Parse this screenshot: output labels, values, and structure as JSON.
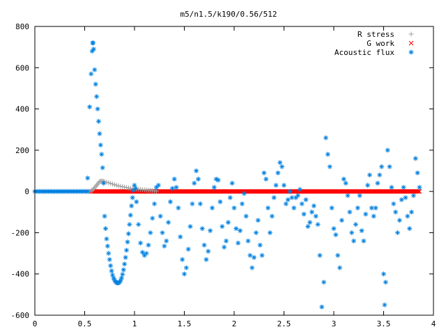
{
  "chart_data": {
    "type": "scatter",
    "title": "m5/n1.5/k190/0.56/512",
    "xlabel": "",
    "ylabel": "",
    "xlim": [
      0,
      4
    ],
    "ylim": [
      -600,
      800
    ],
    "x_ticks": [
      "0",
      "0.5",
      "1",
      "1.5",
      "2",
      "2.5",
      "3",
      "3.5",
      "4"
    ],
    "y_ticks": [
      "800",
      "600",
      "400",
      "200",
      "0",
      "-200",
      "-400",
      "-600"
    ],
    "legend_position": "top-right",
    "grid": false,
    "series": [
      {
        "name": "R stress",
        "marker": "plus",
        "color": "#a0a0a0",
        "points": [
          [
            0.57,
            5
          ],
          [
            0.58,
            8
          ],
          [
            0.59,
            12
          ],
          [
            0.6,
            18
          ],
          [
            0.61,
            24
          ],
          [
            0.62,
            30
          ],
          [
            0.63,
            36
          ],
          [
            0.64,
            42
          ],
          [
            0.65,
            48
          ],
          [
            0.66,
            50
          ],
          [
            0.67,
            50
          ],
          [
            0.68,
            49
          ],
          [
            0.69,
            48
          ],
          [
            0.7,
            47
          ],
          [
            0.72,
            45
          ],
          [
            0.74,
            42
          ],
          [
            0.76,
            39
          ],
          [
            0.78,
            36
          ],
          [
            0.8,
            33
          ],
          [
            0.82,
            30
          ],
          [
            0.84,
            27
          ],
          [
            0.86,
            25
          ],
          [
            0.88,
            23
          ],
          [
            0.9,
            21
          ],
          [
            0.92,
            19
          ],
          [
            0.94,
            17
          ],
          [
            0.96,
            15
          ],
          [
            0.98,
            14
          ],
          [
            1.0,
            13
          ],
          [
            1.02,
            12
          ],
          [
            1.04,
            11
          ],
          [
            1.06,
            10
          ],
          [
            1.08,
            9
          ],
          [
            1.1,
            8
          ],
          [
            1.12,
            7
          ],
          [
            1.14,
            6
          ],
          [
            1.16,
            5
          ],
          [
            1.18,
            4
          ],
          [
            1.2,
            3
          ],
          [
            1.22,
            2
          ]
        ]
      },
      {
        "name": "G work",
        "marker": "cross",
        "color": "#ff0000",
        "x_range": [
          0.57,
          3.86
        ],
        "constant_value": 0
      },
      {
        "name": "Acoustic flux",
        "marker": "star",
        "color": "#0080e0",
        "baseline_segment": {
          "x_range": [
            0.0,
            0.55
          ],
          "value": 0
        },
        "points": [
          [
            0.53,
            65
          ],
          [
            0.55,
            410
          ],
          [
            0.565,
            570
          ],
          [
            0.575,
            680
          ],
          [
            0.58,
            720
          ],
          [
            0.585,
            720
          ],
          [
            0.59,
            690
          ],
          [
            0.6,
            590
          ],
          [
            0.61,
            520
          ],
          [
            0.62,
            460
          ],
          [
            0.63,
            400
          ],
          [
            0.64,
            340
          ],
          [
            0.65,
            280
          ],
          [
            0.66,
            225
          ],
          [
            0.67,
            180
          ],
          [
            0.68,
            115
          ],
          [
            0.69,
            40
          ],
          [
            0.7,
            -120
          ],
          [
            0.71,
            -180
          ],
          [
            0.72,
            -230
          ],
          [
            0.73,
            -265
          ],
          [
            0.74,
            -300
          ],
          [
            0.75,
            -330
          ],
          [
            0.76,
            -360
          ],
          [
            0.77,
            -385
          ],
          [
            0.78,
            -405
          ],
          [
            0.79,
            -420
          ],
          [
            0.8,
            -430
          ],
          [
            0.81,
            -438
          ],
          [
            0.82,
            -442
          ],
          [
            0.83,
            -444
          ],
          [
            0.84,
            -443
          ],
          [
            0.85,
            -440
          ],
          [
            0.86,
            -432
          ],
          [
            0.87,
            -420
          ],
          [
            0.88,
            -402
          ],
          [
            0.89,
            -380
          ],
          [
            0.9,
            -352
          ],
          [
            0.91,
            -320
          ],
          [
            0.92,
            -285
          ],
          [
            0.93,
            -245
          ],
          [
            0.94,
            -205
          ],
          [
            0.95,
            -160
          ],
          [
            0.96,
            -115
          ],
          [
            0.97,
            -70
          ],
          [
            0.98,
            -30
          ],
          [
            0.99,
            5
          ],
          [
            1.0,
            30
          ],
          [
            1.01,
            15
          ],
          [
            1.02,
            -50
          ],
          [
            1.04,
            -160
          ],
          [
            1.06,
            -250
          ],
          [
            1.08,
            -295
          ],
          [
            1.1,
            -310
          ],
          [
            1.12,
            -300
          ],
          [
            1.14,
            -260
          ],
          [
            1.16,
            -200
          ],
          [
            1.18,
            -130
          ],
          [
            1.2,
            -60
          ],
          [
            1.22,
            20
          ],
          [
            1.24,
            30
          ],
          [
            1.26,
            -120
          ],
          [
            1.28,
            -200
          ],
          [
            1.3,
            -265
          ],
          [
            1.32,
            -240
          ],
          [
            1.34,
            -150
          ],
          [
            1.36,
            -50
          ],
          [
            1.38,
            15
          ],
          [
            1.4,
            60
          ],
          [
            1.42,
            20
          ],
          [
            1.44,
            -80
          ],
          [
            1.46,
            -220
          ],
          [
            1.48,
            -330
          ],
          [
            1.5,
            -400
          ],
          [
            1.52,
            -370
          ],
          [
            1.54,
            -280
          ],
          [
            1.56,
            -170
          ],
          [
            1.58,
            -60
          ],
          [
            1.6,
            40
          ],
          [
            1.62,
            100
          ],
          [
            1.64,
            60
          ],
          [
            1.66,
            -60
          ],
          [
            1.68,
            -180
          ],
          [
            1.7,
            -260
          ],
          [
            1.72,
            -330
          ],
          [
            1.74,
            -290
          ],
          [
            1.76,
            -190
          ],
          [
            1.78,
            -80
          ],
          [
            1.8,
            20
          ],
          [
            1.82,
            60
          ],
          [
            1.84,
            55
          ],
          [
            1.86,
            -50
          ],
          [
            1.88,
            -170
          ],
          [
            1.9,
            -270
          ],
          [
            1.92,
            -240
          ],
          [
            1.94,
            -150
          ],
          [
            1.96,
            -30
          ],
          [
            1.98,
            40
          ],
          [
            2.0,
            -80
          ],
          [
            2.02,
            -180
          ],
          [
            2.04,
            -250
          ],
          [
            2.06,
            -190
          ],
          [
            2.08,
            -60
          ],
          [
            2.1,
            -10
          ],
          [
            2.12,
            -120
          ],
          [
            2.14,
            -240
          ],
          [
            2.16,
            -310
          ],
          [
            2.18,
            -370
          ],
          [
            2.2,
            -320
          ],
          [
            2.22,
            -200
          ],
          [
            2.24,
            -140
          ],
          [
            2.26,
            -260
          ],
          [
            2.28,
            -310
          ],
          [
            2.3,
            90
          ],
          [
            2.32,
            60
          ],
          [
            2.34,
            -80
          ],
          [
            2.36,
            -200
          ],
          [
            2.38,
            -120
          ],
          [
            2.4,
            -30
          ],
          [
            2.42,
            30
          ],
          [
            2.44,
            90
          ],
          [
            2.46,
            140
          ],
          [
            2.48,
            120
          ],
          [
            2.5,
            30
          ],
          [
            2.52,
            -60
          ],
          [
            2.54,
            -40
          ],
          [
            2.56,
            0
          ],
          [
            2.58,
            -30
          ],
          [
            2.6,
            -80
          ],
          [
            2.62,
            -30
          ],
          [
            2.64,
            -20
          ],
          [
            2.66,
            10
          ],
          [
            2.68,
            -60
          ],
          [
            2.7,
            -110
          ],
          [
            2.72,
            -40
          ],
          [
            2.74,
            -170
          ],
          [
            2.76,
            -150
          ],
          [
            2.78,
            -100
          ],
          [
            2.8,
            -70
          ],
          [
            2.82,
            -120
          ],
          [
            2.84,
            -160
          ],
          [
            2.86,
            -310
          ],
          [
            2.88,
            -560
          ],
          [
            2.9,
            -440
          ],
          [
            2.92,
            260
          ],
          [
            2.94,
            180
          ],
          [
            2.96,
            120
          ],
          [
            2.98,
            -80
          ],
          [
            3.0,
            -180
          ],
          [
            3.02,
            -210
          ],
          [
            3.04,
            -310
          ],
          [
            3.06,
            -370
          ],
          [
            3.08,
            -140
          ],
          [
            3.1,
            60
          ],
          [
            3.12,
            40
          ],
          [
            3.14,
            -20
          ],
          [
            3.16,
            -100
          ],
          [
            3.18,
            -200
          ],
          [
            3.2,
            -240
          ],
          [
            3.22,
            -160
          ],
          [
            3.24,
            -80
          ],
          [
            3.26,
            -20
          ],
          [
            3.28,
            -190
          ],
          [
            3.3,
            -240
          ],
          [
            3.32,
            -110
          ],
          [
            3.34,
            30
          ],
          [
            3.36,
            80
          ],
          [
            3.38,
            -80
          ],
          [
            3.4,
            -120
          ],
          [
            3.42,
            -80
          ],
          [
            3.44,
            40
          ],
          [
            3.46,
            80
          ],
          [
            3.48,
            120
          ],
          [
            3.5,
            -400
          ],
          [
            3.51,
            -550
          ],
          [
            3.52,
            -440
          ],
          [
            3.54,
            200
          ],
          [
            3.56,
            120
          ],
          [
            3.58,
            20
          ],
          [
            3.6,
            -60
          ],
          [
            3.62,
            -100
          ],
          [
            3.64,
            -200
          ],
          [
            3.66,
            -140
          ],
          [
            3.68,
            -40
          ],
          [
            3.7,
            20
          ],
          [
            3.72,
            -30
          ],
          [
            3.74,
            -120
          ],
          [
            3.76,
            -180
          ],
          [
            3.78,
            -100
          ],
          [
            3.8,
            -20
          ],
          [
            3.82,
            160
          ],
          [
            3.84,
            90
          ],
          [
            3.86,
            20
          ]
        ]
      }
    ]
  }
}
